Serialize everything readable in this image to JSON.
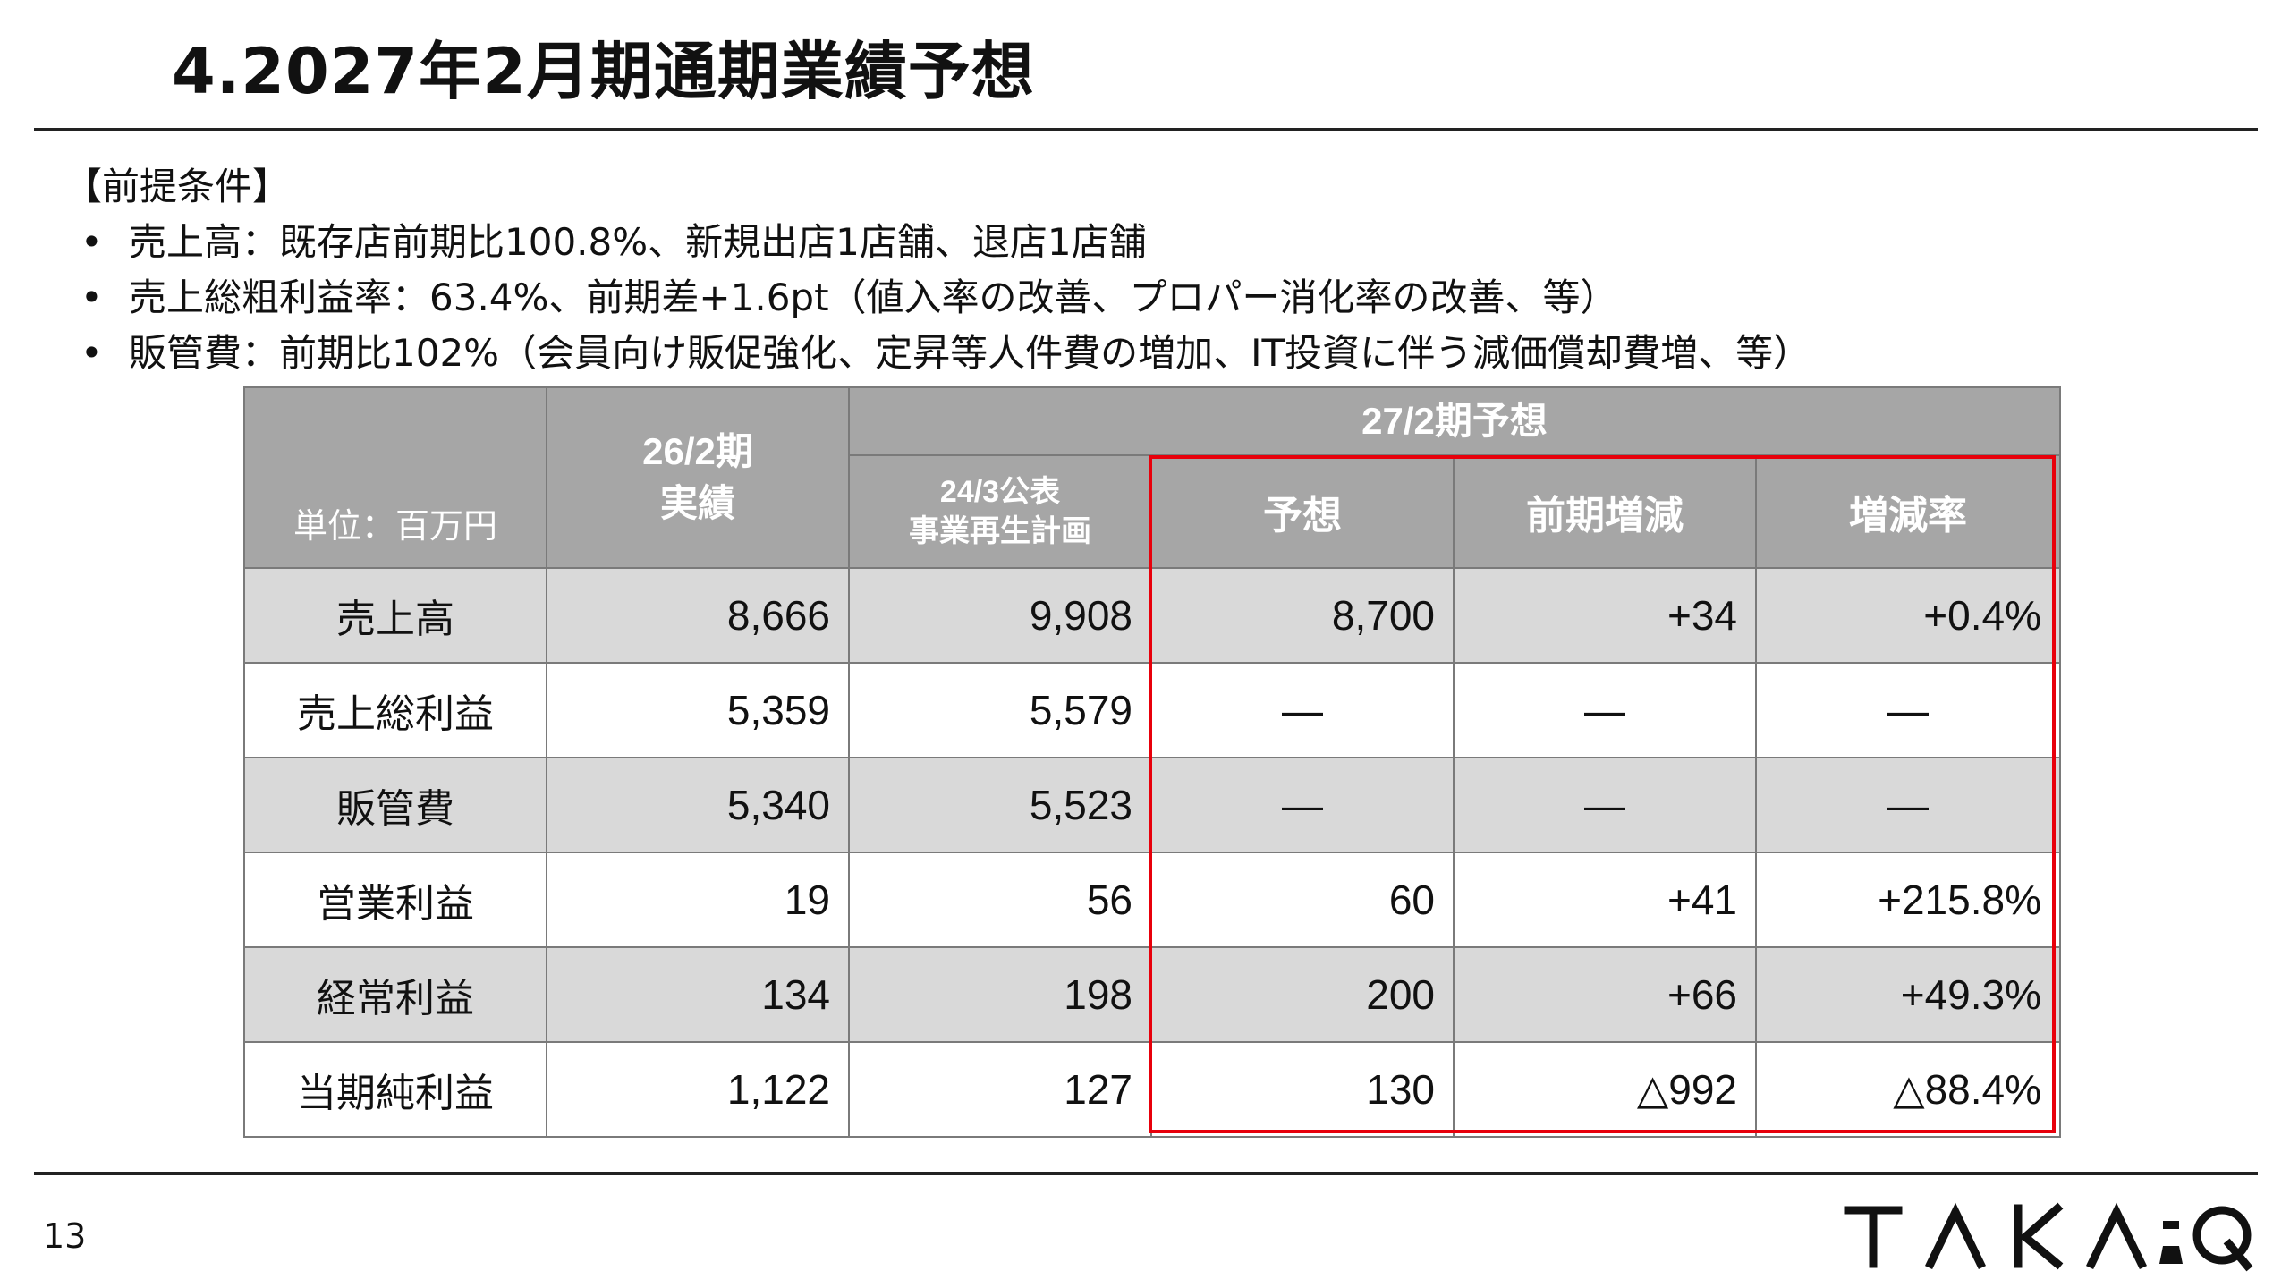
{
  "title": "4.2027年2月期通期業績予想",
  "premise": {
    "heading": "【前提条件】",
    "bullets": [
      "売上高：既存店前期比100.8%、新規出店1店舗、退店1店舗",
      "売上総粗利益率：63.4%、前期差+1.6pt（値入率の改善、プロパー消化率の改善、等）",
      "販管費：前期比102%（会員向け販促強化、定昇等人件費の増加、IT投資に伴う減価償却費増、等）"
    ]
  },
  "table": {
    "unit_label": "単位：百万円",
    "col_actual_line1": "26/2期",
    "col_actual_line2": "実績",
    "group_forecast": "27/2期予想",
    "col_plan_line1": "24/3公表",
    "col_plan_line2": "事業再生計画",
    "col_forecast": "予想",
    "col_change": "前期増減",
    "col_rate": "増減率",
    "rows": [
      {
        "label": "売上高",
        "actual": "8,666",
        "plan": "9,908",
        "forecast": "8,700",
        "change": "+34",
        "rate": "+0.4%"
      },
      {
        "label": "売上総利益",
        "actual": "5,359",
        "plan": "5,579",
        "forecast": "—",
        "change": "—",
        "rate": "—"
      },
      {
        "label": "販管費",
        "actual": "5,340",
        "plan": "5,523",
        "forecast": "—",
        "change": "—",
        "rate": "—"
      },
      {
        "label": "営業利益",
        "actual": "19",
        "plan": "56",
        "forecast": "60",
        "change": "+41",
        "rate": "+215.8%"
      },
      {
        "label": "経常利益",
        "actual": "134",
        "plan": "198",
        "forecast": "200",
        "change": "+66",
        "rate": "+49.3%"
      },
      {
        "label": "当期純利益",
        "actual": "1,122",
        "plan": "127",
        "forecast": "130",
        "change": "△992",
        "rate": "△88.4%"
      }
    ]
  },
  "highlight_color": "#e8000b",
  "page_number": "13",
  "logo_text": "TAKA-Q"
}
